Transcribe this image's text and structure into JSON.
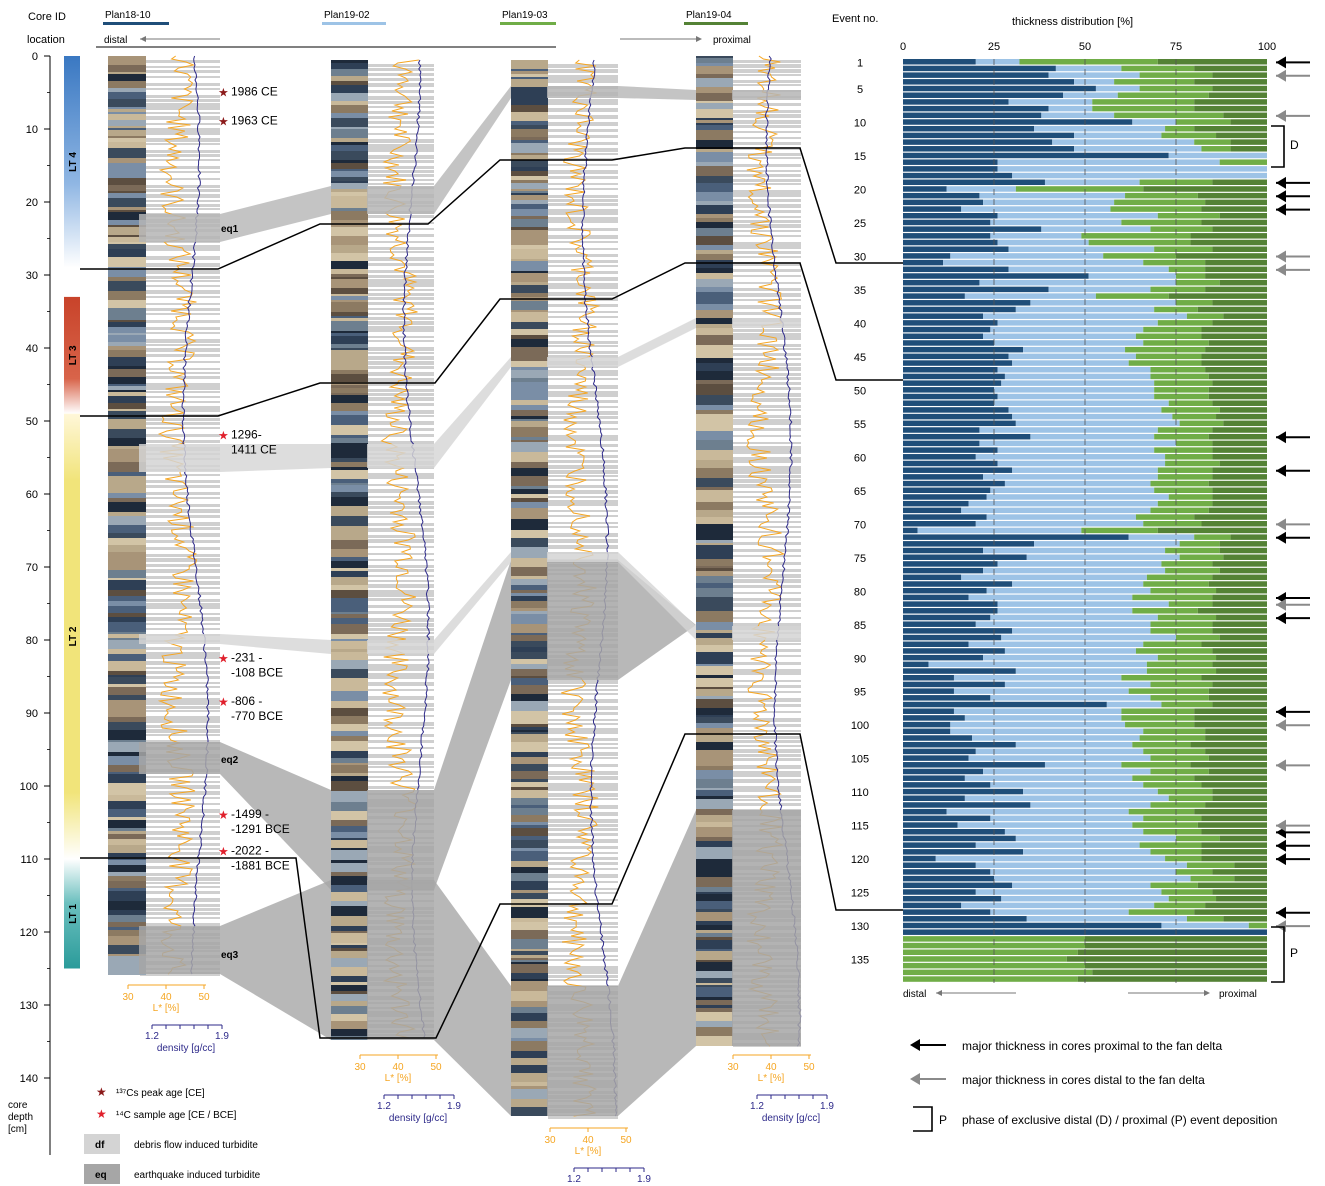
{
  "header": {
    "core_id_label": "Core ID",
    "location_label": "location",
    "distal_label": "distal",
    "proximal_label": "proximal",
    "cores": [
      {
        "id": "Plan18-10",
        "color": "#1f4e79"
      },
      {
        "id": "Plan19-02",
        "color": "#9dc3e6"
      },
      {
        "id": "Plan19-03",
        "color": "#70ad47"
      },
      {
        "id": "Plan19-04",
        "color": "#548235"
      }
    ]
  },
  "depth_axis": {
    "ticks": [
      0,
      10,
      20,
      30,
      40,
      50,
      60,
      70,
      80,
      90,
      100,
      110,
      120,
      130,
      140
    ],
    "label_1": "core",
    "label_2": "depth",
    "label_3": "[cm]"
  },
  "units": [
    {
      "name": "LT 4",
      "top": 0,
      "bottom": 29,
      "color_top": "#3a78c2",
      "color_bottom": "#ffffff"
    },
    {
      "name": "LT 3",
      "top": 33,
      "bottom": 49,
      "color_top": "#c8432a",
      "color_bottom": "#ffffff"
    },
    {
      "name": "LT 2",
      "top": 49,
      "bottom": 110,
      "color_top": "#f1e47a",
      "color_bottom": "#ffffff"
    },
    {
      "name": "LT 1",
      "top": 110,
      "bottom": 125,
      "color_top": "#ffffff",
      "color_bottom": "#2a9b9a"
    }
  ],
  "ages": [
    {
      "line1": "1986 CE",
      "line2": "",
      "depth": 5,
      "type": "cs"
    },
    {
      "line1": "1963 CE",
      "line2": "",
      "depth": 9,
      "type": "cs"
    },
    {
      "line1": "1296-",
      "line2": "1411 CE",
      "depth": 52,
      "type": "c14"
    },
    {
      "line1": "-231 -",
      "line2": "-108 BCE",
      "depth": 82.5,
      "type": "c14"
    },
    {
      "line1": "-806 -",
      "line2": "-770 BCE",
      "depth": 88.5,
      "type": "c14"
    },
    {
      "line1": "-1499 -",
      "line2": "-1291 BCE",
      "depth": 104,
      "type": "c14"
    },
    {
      "line1": "-2022 -",
      "line2": "-1881 BCE",
      "depth": 109,
      "type": "c14"
    }
  ],
  "eq_labels": [
    "eq1",
    "eq2",
    "eq3"
  ],
  "lstar_axis": {
    "label": "L* [%]",
    "ticks": [
      "30",
      "40",
      "50"
    ]
  },
  "density_axis": {
    "label": "density [g/cc]",
    "ticks": [
      "1.2",
      "1.9"
    ]
  },
  "legend": {
    "cs_label": "¹³⁷Cs peak age [CE]",
    "c14_label": "¹⁴C sample age [CE / BCE]",
    "df_code": "df",
    "df_label": "debris flow induced turbidite",
    "eq_code": "eq",
    "eq_label": "earthquake induced turbidite"
  },
  "right_panel": {
    "event_no_label": "Event no.",
    "title": "thickness distribution [%]",
    "x_ticks": [
      "0",
      "25",
      "50",
      "75",
      "100"
    ],
    "distal_label": "distal",
    "proximal_label": "proximal",
    "D_label": "D",
    "P_label": "P",
    "legend_black": "major thickness in cores proximal to the fan delta",
    "legend_gray": "major thickness in cores distal to the fan delta",
    "legend_bracket_letter": "P",
    "legend_bracket": "phase of exclusive distal (D) / proximal (P) event deposition"
  },
  "colors": {
    "c1": "#1f4e79",
    "c2": "#9dc3e6",
    "c3": "#70ad47",
    "c4": "#548235",
    "lstar": "#f5a623",
    "density": "#2e2a8a",
    "event_gray": "#c8c8c8",
    "eq_gray": "#a6a6a6",
    "star_cs": "#8b1a1a",
    "star_c14": "#e0202c"
  },
  "chart_data": {
    "type": "bar",
    "orientation": "horizontal-stacked",
    "title": "thickness distribution [%]",
    "xlabel": "",
    "ylabel": "Event no.",
    "xlim": [
      0,
      100
    ],
    "y_tick_labels": [
      1,
      5,
      10,
      15,
      20,
      25,
      30,
      35,
      40,
      45,
      50,
      55,
      60,
      65,
      70,
      75,
      80,
      85,
      90,
      95,
      100,
      105,
      110,
      115,
      120,
      125,
      130,
      135
    ],
    "events": [
      1,
      138
    ],
    "series": [
      {
        "name": "Plan18-10",
        "values": [
          20,
          42,
          40,
          47,
          53,
          44,
          29,
          40,
          38,
          63,
          36,
          47,
          41,
          47,
          73,
          26,
          26,
          30,
          39,
          12,
          21,
          22,
          16,
          26,
          24,
          38,
          24,
          26,
          29,
          13,
          11,
          29,
          51,
          21,
          40,
          17,
          35,
          31,
          22,
          26,
          24,
          22,
          25,
          33,
          29,
          30,
          26,
          28,
          27,
          25,
          26,
          25,
          29,
          30,
          31,
          21,
          35,
          21,
          26,
          20,
          26,
          30,
          22,
          28,
          24,
          23,
          18,
          16,
          23,
          20,
          4,
          62,
          36,
          22,
          34,
          26,
          22,
          16,
          30,
          23,
          18,
          26,
          26,
          24,
          20,
          30,
          27,
          18,
          28,
          22,
          7,
          31,
          14,
          28,
          14,
          24,
          56,
          14,
          17,
          13,
          13,
          19,
          31,
          20,
          18,
          39,
          22,
          17,
          24,
          33,
          17,
          35,
          12,
          24,
          15,
          28,
          31,
          20,
          33,
          9,
          20,
          24,
          25,
          30,
          20,
          27,
          16,
          24,
          34,
          71,
          100,
          0,
          0,
          0,
          0,
          0,
          0,
          0,
          0
        ],
        "note": "approx. percentages per event 1-138"
      },
      {
        "name": "Plan19-02",
        "values": [
          12,
          18,
          25,
          11,
          12,
          15,
          23,
          12,
          20,
          12,
          36,
          24,
          39,
          35,
          27,
          61,
          74,
          70,
          26,
          19,
          40,
          36,
          41,
          44,
          36,
          30,
          25,
          25,
          40,
          42,
          55,
          44,
          24,
          54,
          28,
          36,
          40,
          38,
          56,
          44,
          42,
          42,
          41,
          28,
          35,
          32,
          42,
          40,
          42,
          44,
          43,
          48,
          42,
          44,
          45,
          49,
          34,
          54,
          43,
          52,
          46,
          40,
          48,
          40,
          45,
          50,
          52,
          52,
          41,
          46,
          45,
          18,
          40,
          50,
          42,
          45,
          50,
          51,
          36,
          45,
          45,
          47,
          37,
          46,
          48,
          38,
          48,
          48,
          36,
          48,
          60,
          36,
          46,
          40,
          48,
          44,
          15,
          46,
          43,
          48,
          53,
          46,
          32,
          46,
          50,
          21,
          46,
          46,
          42,
          37,
          56,
          33,
          50,
          42,
          48,
          38,
          44,
          45,
          35,
          63,
          58,
          51,
          54,
          38,
          51,
          46,
          53,
          38,
          44,
          24,
          0,
          0,
          0,
          0,
          0,
          0,
          0,
          0,
          0
        ]
      },
      {
        "name": "Plan19-03",
        "values": [
          38,
          20,
          20,
          22,
          20,
          25,
          28,
          28,
          30,
          15,
          8,
          15,
          10,
          8,
          0,
          13,
          0,
          0,
          20,
          35,
          20,
          25,
          25,
          17,
          22,
          17,
          30,
          28,
          16,
          20,
          17,
          10,
          8,
          12,
          15,
          20,
          10,
          12,
          10,
          15,
          16,
          18,
          18,
          22,
          18,
          20,
          15,
          16,
          16,
          15,
          15,
          12,
          16,
          12,
          12,
          15,
          15,
          10,
          16,
          13,
          15,
          15,
          15,
          16,
          16,
          12,
          15,
          16,
          16,
          16,
          21,
          10,
          11,
          15,
          12,
          14,
          15,
          18,
          18,
          18,
          22,
          12,
          18,
          16,
          17,
          17,
          12,
          16,
          21,
          16,
          18,
          19,
          22,
          17,
          22,
          16,
          14,
          20,
          20,
          19,
          17,
          18,
          16,
          17,
          16,
          19,
          16,
          17,
          16,
          15,
          12,
          15,
          18,
          16,
          18,
          16,
          12,
          17,
          14,
          10,
          13,
          10,
          12,
          13,
          14,
          13,
          14,
          18,
          10,
          5,
          0,
          50,
          50,
          48,
          45,
          50,
          52,
          48,
          55,
          50
        ]
      },
      {
        "name": "Plan19-04",
        "values": [
          30,
          20,
          15,
          20,
          15,
          16,
          20,
          20,
          12,
          10,
          20,
          14,
          10,
          10,
          0,
          0,
          0,
          0,
          15,
          34,
          19,
          17,
          18,
          13,
          18,
          15,
          21,
          21,
          15,
          25,
          17,
          17,
          17,
          13,
          17,
          27,
          15,
          19,
          12,
          15,
          18,
          18,
          16,
          17,
          18,
          18,
          17,
          16,
          15,
          16,
          16,
          15,
          13,
          14,
          12,
          15,
          16,
          15,
          15,
          15,
          13,
          15,
          15,
          16,
          15,
          15,
          15,
          16,
          20,
          18,
          30,
          10,
          13,
          13,
          12,
          15,
          13,
          15,
          16,
          14,
          15,
          15,
          19,
          14,
          15,
          15,
          13,
          18,
          15,
          14,
          15,
          14,
          18,
          15,
          16,
          16,
          15,
          20,
          20,
          20,
          17,
          17,
          21,
          17,
          16,
          21,
          16,
          20,
          18,
          15,
          15,
          17,
          20,
          18,
          19,
          18,
          13,
          18,
          18,
          18,
          9,
          15,
          9,
          19,
          15,
          14,
          17,
          20,
          12,
          0,
          0,
          50,
          50,
          52,
          55,
          50,
          48,
          52,
          45,
          50
        ]
      }
    ],
    "arrows_proximal_black": [
      1,
      19,
      21,
      23,
      57,
      62,
      72,
      81,
      84,
      98,
      116,
      118,
      120,
      128
    ],
    "arrows_distal_gray": [
      3,
      9,
      30,
      32,
      70,
      82,
      100,
      106,
      115,
      130
    ],
    "phase_D_events": [
      9,
      15
    ],
    "phase_P_events": [
      131,
      138
    ]
  }
}
